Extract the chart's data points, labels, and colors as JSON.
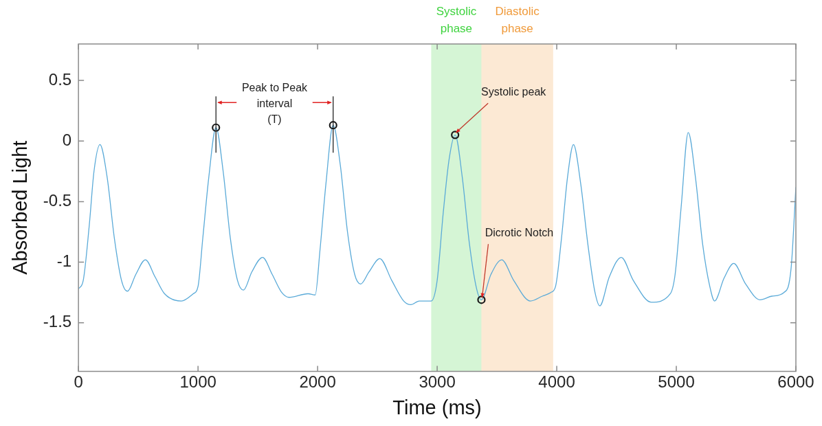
{
  "chart_data": {
    "type": "line",
    "xlabel": "Time (ms)",
    "ylabel": "Absorbed Light",
    "xlim": [
      0,
      6000
    ],
    "xticks": [
      0,
      1000,
      2000,
      3000,
      4000,
      5000,
      6000
    ],
    "ylim": [
      -1.9,
      0.8
    ],
    "yticks": [
      -1.5,
      -1,
      -0.5,
      0,
      0.5
    ],
    "marker": "none",
    "line_style": "solid",
    "series": [
      {
        "color": "#5aaad8",
        "x": [
          0,
          40,
          90,
          130,
          180,
          240,
          300,
          360,
          410,
          480,
          560,
          640,
          720,
          860,
          960,
          1000,
          1040,
          1090,
          1150,
          1210,
          1270,
          1330,
          1380,
          1450,
          1540,
          1620,
          1700,
          1760,
          1920,
          1980,
          2020,
          2070,
          2130,
          2190,
          2250,
          2310,
          2360,
          2430,
          2520,
          2620,
          2720,
          2780,
          2850,
          2950,
          3000,
          3050,
          3100,
          3150,
          3210,
          3270,
          3330,
          3370,
          3450,
          3540,
          3640,
          3780,
          3880,
          3950,
          3990,
          4040,
          4090,
          4140,
          4200,
          4260,
          4320,
          4360,
          4440,
          4540,
          4640,
          4790,
          4950,
          4990,
          5040,
          5100,
          5160,
          5220,
          5280,
          5320,
          5400,
          5480,
          5580,
          5700,
          5800,
          5900,
          5960,
          6000
        ],
        "values": [
          -1.22,
          -1.15,
          -0.7,
          -0.25,
          -0.03,
          -0.3,
          -0.8,
          -1.15,
          -1.24,
          -1.1,
          -0.98,
          -1.12,
          -1.26,
          -1.32,
          -1.26,
          -1.2,
          -0.8,
          -0.3,
          0.11,
          -0.25,
          -0.8,
          -1.15,
          -1.23,
          -1.08,
          -0.96,
          -1.1,
          -1.25,
          -1.29,
          -1.26,
          -1.27,
          -0.9,
          -0.35,
          0.13,
          -0.2,
          -0.75,
          -1.1,
          -1.18,
          -1.08,
          -0.97,
          -1.15,
          -1.32,
          -1.35,
          -1.32,
          -1.32,
          -1.15,
          -0.6,
          -0.15,
          0.05,
          -0.3,
          -0.85,
          -1.22,
          -1.31,
          -1.1,
          -0.98,
          -1.15,
          -1.32,
          -1.28,
          -1.25,
          -1.2,
          -0.8,
          -0.3,
          -0.03,
          -0.35,
          -0.85,
          -1.25,
          -1.36,
          -1.12,
          -0.96,
          -1.15,
          -1.33,
          -1.26,
          -1.1,
          -0.55,
          0.07,
          -0.3,
          -0.85,
          -1.2,
          -1.32,
          -1.13,
          -1.01,
          -1.18,
          -1.31,
          -1.28,
          -1.25,
          -1.05,
          -0.38
        ]
      },
      {
        "type": "scatter",
        "marker": "circle",
        "color": "#1a1a1a",
        "x": [
          1150,
          2130,
          3150,
          3370
        ],
        "values": [
          0.11,
          0.13,
          0.05,
          -1.31
        ]
      }
    ],
    "bands": [
      {
        "axis": "x",
        "from": 2950,
        "to": 3370,
        "label": "Systolic phase",
        "color": "#3fd33f"
      },
      {
        "axis": "x",
        "from": 3370,
        "to": 3970,
        "label": "Diastolic phase",
        "color": "#f09a3a"
      }
    ],
    "annotations": [
      "Peak to Peak interval (T)",
      {
        "text": "Systolic peak",
        "x": 3150,
        "y": 0.05
      },
      {
        "text": "Dicrotic Notch",
        "x": 3370,
        "y": -1.31
      }
    ]
  }
}
